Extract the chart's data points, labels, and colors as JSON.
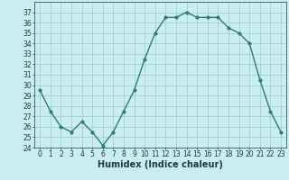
{
  "x": [
    0,
    1,
    2,
    3,
    4,
    5,
    6,
    7,
    8,
    9,
    10,
    11,
    12,
    13,
    14,
    15,
    16,
    17,
    18,
    19,
    20,
    21,
    22,
    23
  ],
  "y": [
    29.5,
    27.5,
    26.0,
    25.5,
    26.5,
    25.5,
    24.2,
    25.5,
    27.5,
    29.5,
    32.5,
    35.0,
    36.5,
    36.5,
    37.0,
    36.5,
    36.5,
    36.5,
    35.5,
    35.0,
    34.0,
    30.5,
    27.5,
    25.5
  ],
  "xlabel": "Humidex (Indice chaleur)",
  "ylim": [
    24,
    38
  ],
  "xlim": [
    -0.5,
    23.5
  ],
  "yticks": [
    24,
    25,
    26,
    27,
    28,
    29,
    30,
    31,
    32,
    33,
    34,
    35,
    36,
    37
  ],
  "xticks": [
    0,
    1,
    2,
    3,
    4,
    5,
    6,
    7,
    8,
    9,
    10,
    11,
    12,
    13,
    14,
    15,
    16,
    17,
    18,
    19,
    20,
    21,
    22,
    23
  ],
  "line_color": "#2e7d6e",
  "marker_color": "#2e7d6e",
  "bg_color": "#c8eef0",
  "grid_color": "#a0c8d0",
  "label_color": "#1a3a4a",
  "xlabel_fontsize": 7,
  "tick_fontsize": 5.5,
  "line_width": 1.0,
  "marker_size": 2.5
}
